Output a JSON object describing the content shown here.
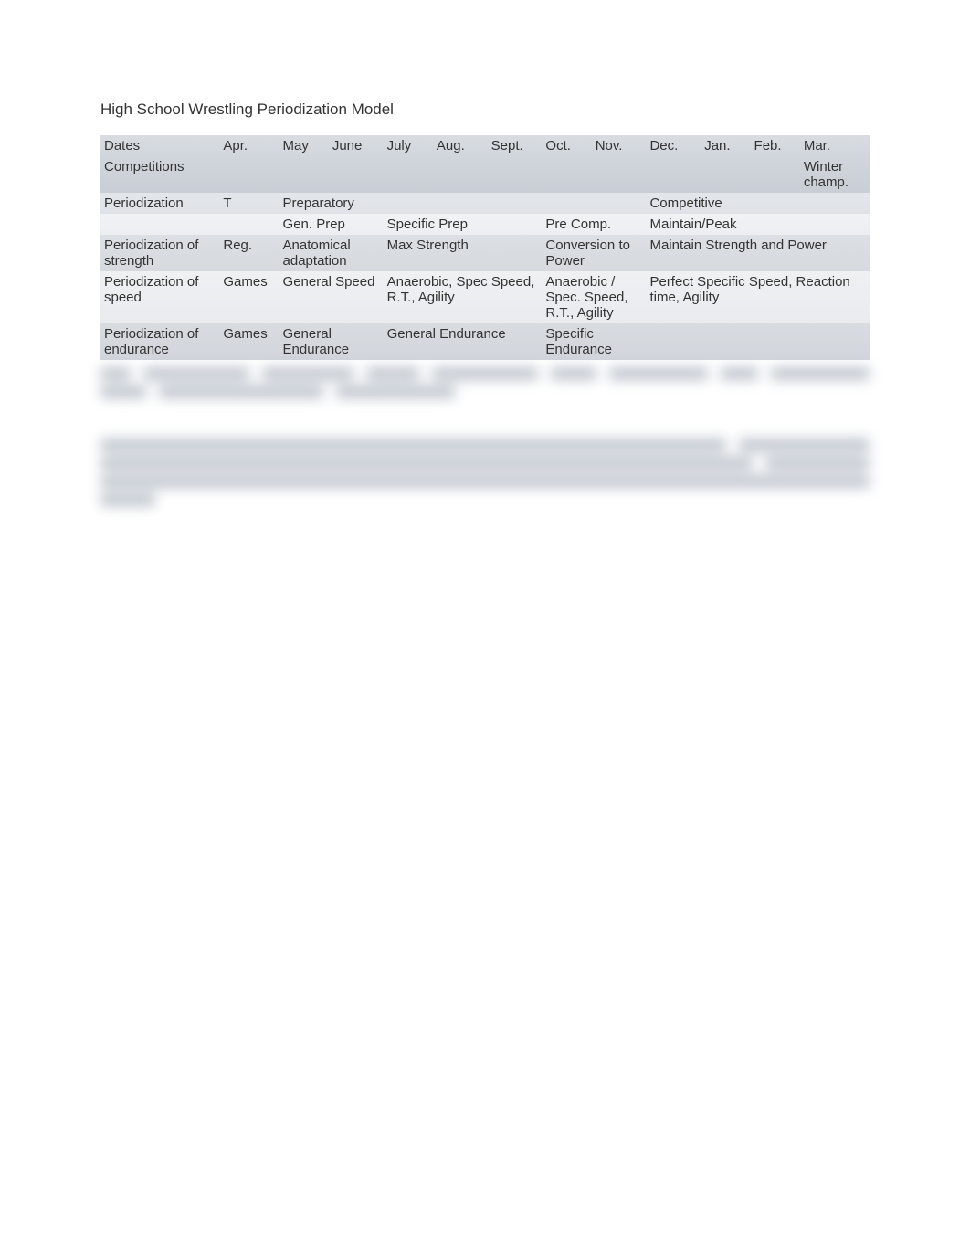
{
  "title": "High School Wrestling Periodization Model",
  "colors": {
    "text": "#333333",
    "header_bg_top": "#d9dde2",
    "header_bg_bot": "#d1d6dc",
    "row_alt1": "#e3e6ea",
    "row_alt2": "#eceef1",
    "blur_tint": "#8a96a5"
  },
  "table": {
    "label_col_width": 120,
    "rows": [
      {
        "class": "dates",
        "label": "Dates",
        "cells": [
          "Apr.",
          "May",
          "June",
          "July",
          "Aug.",
          "Sept.",
          "Oct.",
          "Nov.",
          "Dec.",
          "Jan.",
          "Feb.",
          "Mar."
        ]
      },
      {
        "class": "comp",
        "label": "Competitions",
        "cells": [
          "",
          "",
          "",
          "",
          "",
          "",
          "",
          "",
          "",
          "",
          "",
          "Winter champ."
        ]
      },
      {
        "class": "period-main",
        "label": "Periodization",
        "spans": [
          {
            "text": "T",
            "cols": 1
          },
          {
            "text": "Preparatory",
            "cols": 4
          },
          {
            "text": "",
            "cols": 3
          },
          {
            "text": "Competitive",
            "cols": 4
          }
        ]
      },
      {
        "class": "period-sub",
        "label": "",
        "spans": [
          {
            "text": "",
            "cols": 1
          },
          {
            "text": "Gen. Prep",
            "cols": 2
          },
          {
            "text": "Specific Prep",
            "cols": 3
          },
          {
            "text": "Pre Comp.",
            "cols": 2
          },
          {
            "text": "Maintain/Peak",
            "cols": 4
          }
        ]
      },
      {
        "class": "strength",
        "label": "Periodization of strength",
        "spans": [
          {
            "text": "Reg.",
            "cols": 1
          },
          {
            "text": "Anatomical adaptation",
            "cols": 2
          },
          {
            "text": "Max Strength",
            "cols": 3
          },
          {
            "text": "Conversion to Power",
            "cols": 2
          },
          {
            "text": "Maintain Strength and Power",
            "cols": 4
          }
        ]
      },
      {
        "class": "speed",
        "label": "Periodization of speed",
        "spans": [
          {
            "text": "Games",
            "cols": 1
          },
          {
            "text": "General Speed",
            "cols": 2
          },
          {
            "text": "Anaerobic, Spec Speed, R.T., Agility",
            "cols": 3
          },
          {
            "text": "Anaerobic / Spec. Speed, R.T., Agility",
            "cols": 2
          },
          {
            "text": "Perfect Specific Speed, Reaction time, Agility",
            "cols": 4
          }
        ]
      },
      {
        "class": "endurance",
        "label": "Periodization of endurance",
        "spans": [
          {
            "text": "Games",
            "cols": 1
          },
          {
            "text": "General Endurance",
            "cols": 2
          },
          {
            "text": "General Endurance",
            "cols": 3
          },
          {
            "text": "Specific Endurance",
            "cols": 2
          },
          {
            "text": "",
            "cols": 4
          }
        ]
      }
    ]
  },
  "blur_rows": [
    [
      40,
      140,
      120,
      70,
      140,
      60,
      130,
      50,
      130
    ],
    [
      50,
      180,
      130
    ],
    [],
    [
      720,
      150
    ],
    [
      750,
      120
    ],
    [
      870
    ],
    [
      60
    ]
  ]
}
